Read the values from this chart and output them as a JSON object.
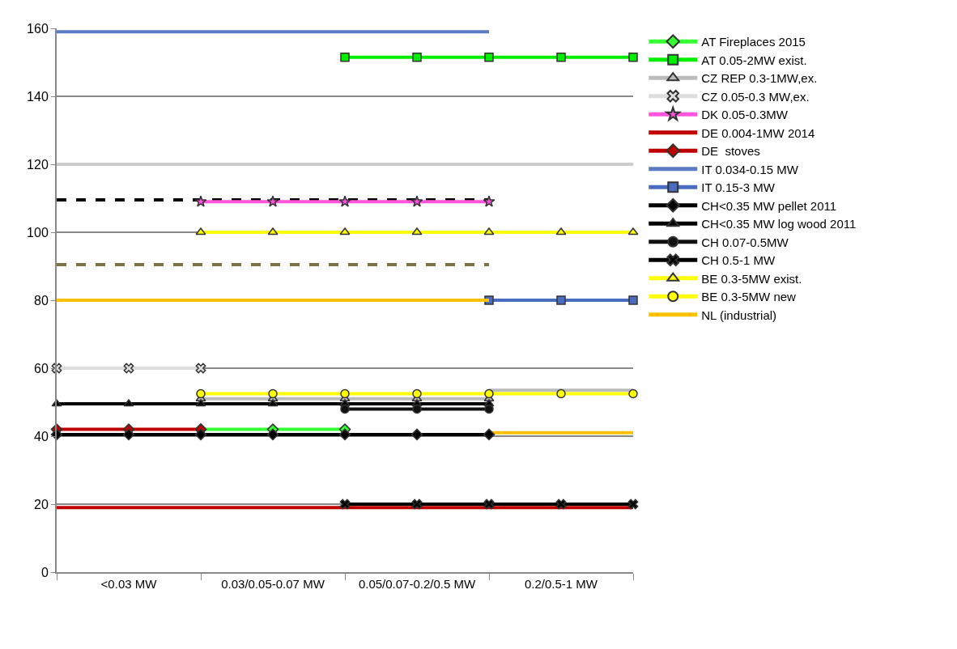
{
  "chart_data": {
    "type": "line",
    "categories": [
      null,
      "<0.03 MW",
      null,
      "0.03/0.05-0.07 MW",
      null,
      "0.05/0.07-0.2/0.5 MW",
      null,
      "0.2/0.5-1 MW",
      null
    ],
    "ylim": [
      0,
      160
    ],
    "yticks": [
      0,
      20,
      40,
      60,
      80,
      100,
      120,
      140,
      160
    ],
    "grid": "y",
    "legend": "right",
    "series": [
      {
        "color": "#cccccc",
        "values": [
          120,
          120,
          120,
          120,
          120,
          120,
          120,
          120,
          120
        ],
        "marker": "none"
      },
      {
        "color": "#000000",
        "values": [
          109.5,
          109.5,
          109.5,
          109.5,
          109.5,
          109.5,
          109.5,
          null,
          null
        ],
        "marker": "none",
        "line_style": "dashed"
      },
      {
        "color": "#7f7446",
        "values": [
          90.5,
          90.5,
          90.5,
          90.5,
          90.5,
          90.5,
          90.5,
          null,
          null
        ],
        "marker": "none",
        "line_style": "dashed"
      },
      {
        "color": "#bbbbbb",
        "values": [
          null,
          null,
          null,
          null,
          null,
          null,
          53.5,
          53.5,
          53.5
        ],
        "marker": "none"
      },
      {
        "color": "#ffc000",
        "values": [
          null,
          null,
          null,
          null,
          null,
          null,
          41,
          41,
          41
        ],
        "marker": "none"
      },
      {
        "name": "AT Fireplaces 2015",
        "color": "#33ff33",
        "values": [
          null,
          null,
          42,
          42,
          42,
          null,
          null,
          null,
          null
        ],
        "marker": "diamond"
      },
      {
        "name": "AT 0.05-2MW exist.",
        "color": "#00ee00",
        "values": [
          null,
          null,
          null,
          null,
          151.5,
          151.5,
          151.5,
          151.5,
          151.5
        ],
        "marker": "square"
      },
      {
        "name": "CZ REP 0.3-1MW,ex.",
        "color": "#bbbbbb",
        "values": [
          null,
          null,
          51,
          51,
          51,
          51,
          51,
          null,
          null
        ],
        "marker": "triangle"
      },
      {
        "name": "CZ 0.05-0.3 MW,ex.",
        "color": "#dddddd",
        "values": [
          60,
          60,
          60,
          null,
          null,
          null,
          null,
          null,
          null
        ],
        "marker": "cross"
      },
      {
        "name": "DK 0.05-0.3MW",
        "color": "#ff55dd",
        "values": [
          null,
          null,
          109,
          109,
          109,
          109,
          109,
          null,
          null
        ],
        "marker": "star"
      },
      {
        "name": "DE 0.004-1MW 2014",
        "color": "#c00000",
        "values": [
          19,
          19,
          19,
          19,
          19,
          19,
          19,
          19,
          19
        ],
        "marker": "none"
      },
      {
        "name": "DE  stoves",
        "color": "#c00000",
        "values": [
          42,
          42,
          42,
          null,
          null,
          null,
          null,
          null,
          null
        ],
        "marker": "diamond"
      },
      {
        "name": "IT 0.034-0.15 MW",
        "color": "#5b7bc4",
        "values": [
          159,
          159,
          159,
          159,
          159,
          159,
          159,
          null,
          null
        ],
        "marker": "none"
      },
      {
        "name": "IT 0.15-3 MW",
        "color": "#4a6cc0",
        "values": [
          null,
          null,
          null,
          null,
          null,
          null,
          80,
          80,
          80
        ],
        "marker": "square"
      },
      {
        "name": "CH<0.35 MW pellet 2011",
        "color": "#000000",
        "values": [
          40.5,
          40.5,
          40.5,
          40.5,
          40.5,
          40.5,
          40.5,
          null,
          null
        ],
        "marker": "diamond"
      },
      {
        "name": "CH<0.35 MW log wood 2011",
        "color": "#000000",
        "values": [
          49.5,
          49.5,
          49.5,
          49.5,
          49.5,
          49.5,
          49.5,
          null,
          null
        ],
        "marker": "triangle"
      },
      {
        "name": "CH 0.07-0.5MW",
        "color": "#111111",
        "values": [
          null,
          null,
          null,
          null,
          48,
          48,
          48,
          null,
          null
        ],
        "marker": "circle"
      },
      {
        "name": "CH 0.5-1 MW",
        "color": "#000000",
        "values": [
          null,
          null,
          null,
          null,
          20,
          20,
          20,
          20,
          20
        ],
        "marker": "cross"
      },
      {
        "name": "BE 0.3-5MW exist.",
        "color": "#ffff00",
        "values": [
          null,
          null,
          100,
          100,
          100,
          100,
          100,
          100,
          100
        ],
        "marker": "triangle"
      },
      {
        "name": "BE 0.3-5MW new",
        "color": "#ffff00",
        "values": [
          null,
          null,
          52.5,
          52.5,
          52.5,
          52.5,
          52.5,
          52.5,
          52.5
        ],
        "marker": "circle"
      },
      {
        "name": "NL (industrial)",
        "color": "#ffc000",
        "values": [
          80,
          80,
          80,
          80,
          80,
          80,
          80,
          null,
          null
        ],
        "marker": "none"
      }
    ]
  }
}
